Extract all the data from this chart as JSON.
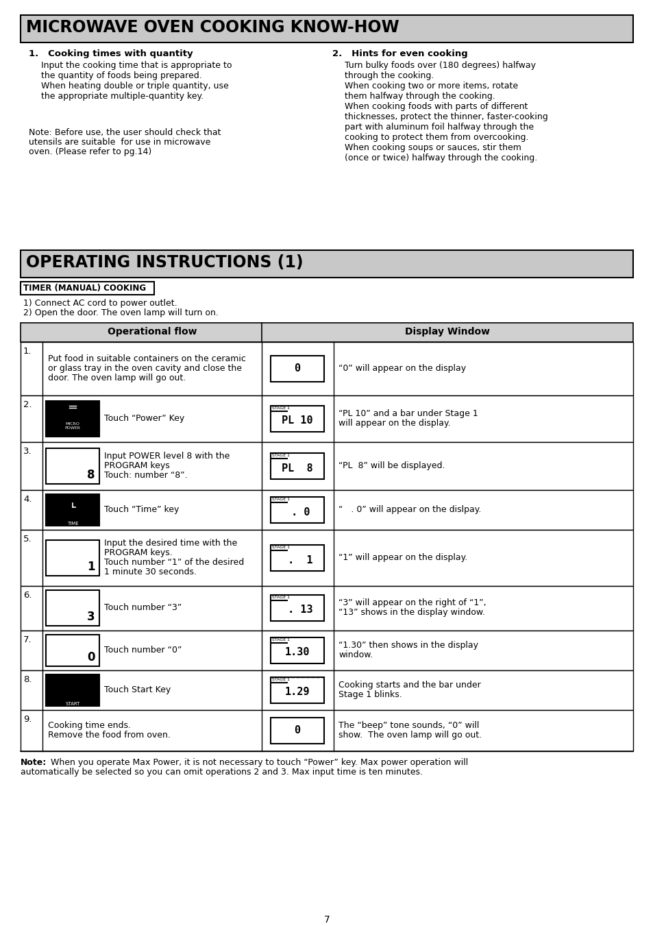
{
  "title1": "MICROWAVE OVEN COOKING KNOW-HOW",
  "title2": "OPERATING INSTRUCTIONS (1)",
  "subtitle": "TIMER (MANUAL) COOKING",
  "section1_heading": "1.   Cooking times with quantity",
  "section1_body": "Input the cooking time that is appropriate to\nthe quantity of foods being prepared.\nWhen heating double or triple quantity, use\nthe appropriate multiple-quantity key.",
  "section1_note": "Note: Before use, the user should check that\nutensils are suitable  for use in microwave\noven. (Please refer to pg.14)",
  "section2_heading": "2.   Hints for even cooking",
  "section2_body": "Turn bulky foods over (180 degrees) halfway\nthrough the cooking.\nWhen cooking two or more items, rotate\nthem halfway through the cooking.\nWhen cooking foods with parts of different\nthicknesses, protect the thinner, faster-cooking\npart with aluminum foil halfway through the\ncooking to protect them from overcooking.\nWhen cooking soups or sauces, stir them\n(once or twice) halfway through the cooking.",
  "prereq1": "1) Connect AC cord to power outlet.",
  "prereq2": "2) Open the door. The oven lamp will turn on.",
  "table_col1": "Operational flow",
  "table_col2": "Display Window",
  "note_bold": "Note:",
  "note_text": "  When you operate Max Power, it is not necessary to touch “Power” key. Max power operation will\nautomatically be selected so you can omit operations 2 and 3. Max input time is ten minutes.",
  "page_num": "7",
  "bg_color": "#ffffff",
  "title_bg": "#c8c8c8",
  "table_hdr_bg": "#d0d0d0",
  "rows": [
    {
      "num": "1.",
      "key": null,
      "flow": "Put food in suitable containers on the ceramic\nor glass tray in the oven cavity and close the\ndoor. The oven lamp will go out.",
      "disp_txt": "disp_img",
      "disp_label": "0",
      "stage1": false,
      "desc": "“0” will appear on the display"
    },
    {
      "num": "2.",
      "key": "micro_power",
      "flow": "Touch “Power” Key",
      "disp_txt": "disp_img",
      "disp_label": "PL 10",
      "stage1": true,
      "desc": "“PL 10” and a bar under Stage 1\nwill appear on the display."
    },
    {
      "num": "3.",
      "key": "key8",
      "flow": "Input POWER level 8 with the\nPROGRAM keys\nTouch: number “8”.",
      "disp_txt": "disp_img",
      "disp_label": "PL  8",
      "stage1": true,
      "desc": "“PL  8” will be displayed."
    },
    {
      "num": "4.",
      "key": "time",
      "flow": "Touch “Time” key",
      "disp_txt": "disp_img",
      "disp_label": " . 0",
      "stage1": true,
      "desc": "“   . 0” will appear on the dislpay."
    },
    {
      "num": "5.",
      "key": "key1",
      "flow": "Input the desired time with the\nPROGRAM keys.\nTouch number “1” of the desired\n1 minute 30 seconds.",
      "disp_txt": "disp_img",
      "disp_label": " .  1",
      "stage1": true,
      "desc": "“1” will appear on the display."
    },
    {
      "num": "6.",
      "key": "key3",
      "flow": "Touch number “3”",
      "disp_txt": "disp_img",
      "disp_label": " . 13",
      "stage1": true,
      "desc": "“3” will appear on the right of “1”,\n“13” shows in the display window."
    },
    {
      "num": "7.",
      "key": "key0",
      "flow": "Touch number “0”",
      "disp_txt": "disp_img",
      "disp_label": "1.30",
      "stage1": true,
      "desc": "“1.30” then shows in the display\nwindow."
    },
    {
      "num": "8.",
      "key": "start",
      "flow": "Touch Start Key",
      "disp_txt": "disp_img",
      "disp_label": "1.29",
      "stage1": true,
      "blink": true,
      "desc": "Cooking starts and the bar under\nStage 1 blinks."
    },
    {
      "num": "9.",
      "key": null,
      "flow": "Cooking time ends.\nRemove the food from oven.",
      "disp_txt": "disp_img",
      "disp_label": "0",
      "stage1": false,
      "desc": "The “beep” tone sounds, “0” will\nshow.  The oven lamp will go out."
    }
  ]
}
